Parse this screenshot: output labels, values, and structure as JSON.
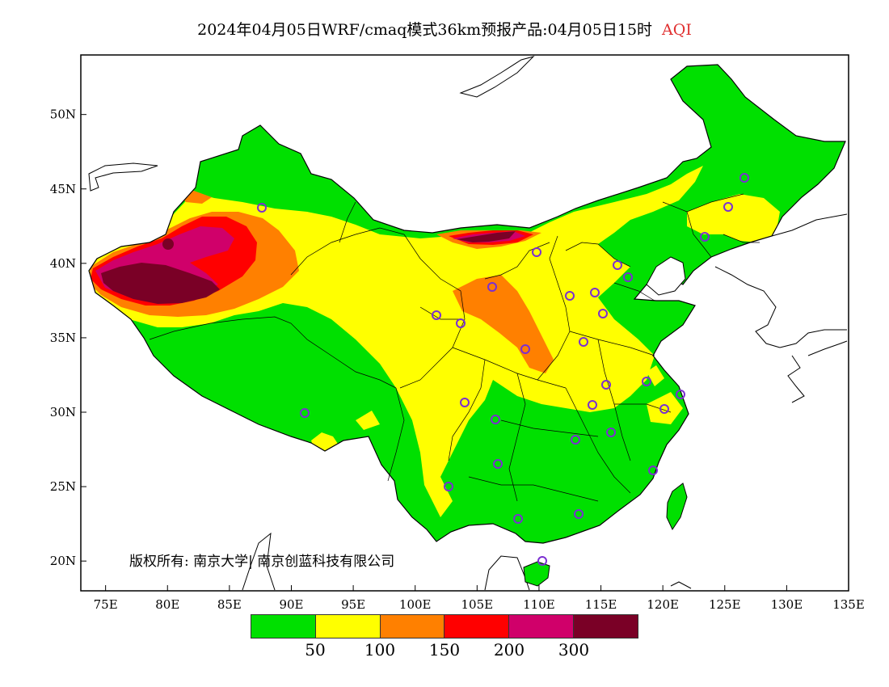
{
  "title": {
    "main": "2024年04月05日WRF/cmaq模式36km预报产品:04月05日15时",
    "variable": "AQI",
    "variable_color": "#e03030"
  },
  "map": {
    "region": "China",
    "lon_range": [
      73,
      135
    ],
    "lat_range": [
      18,
      54
    ],
    "x_ticks": [
      "75E",
      "80E",
      "85E",
      "90E",
      "95E",
      "100E",
      "105E",
      "110E",
      "115E",
      "120E",
      "125E",
      "130E",
      "135E"
    ],
    "y_ticks": [
      "20N",
      "25N",
      "30N",
      "35N",
      "40N",
      "45N",
      "50N"
    ],
    "station_marker_color": "#7b2fd1"
  },
  "legend": {
    "colors": [
      "#00e000",
      "#ffff00",
      "#ff8000",
      "#ff0000",
      "#d0006a",
      "#7a0026"
    ],
    "labels": [
      "50",
      "100",
      "150",
      "200",
      "300"
    ]
  },
  "copyright": "版权所有: 南京大学| 南京创蓝科技有限公司"
}
